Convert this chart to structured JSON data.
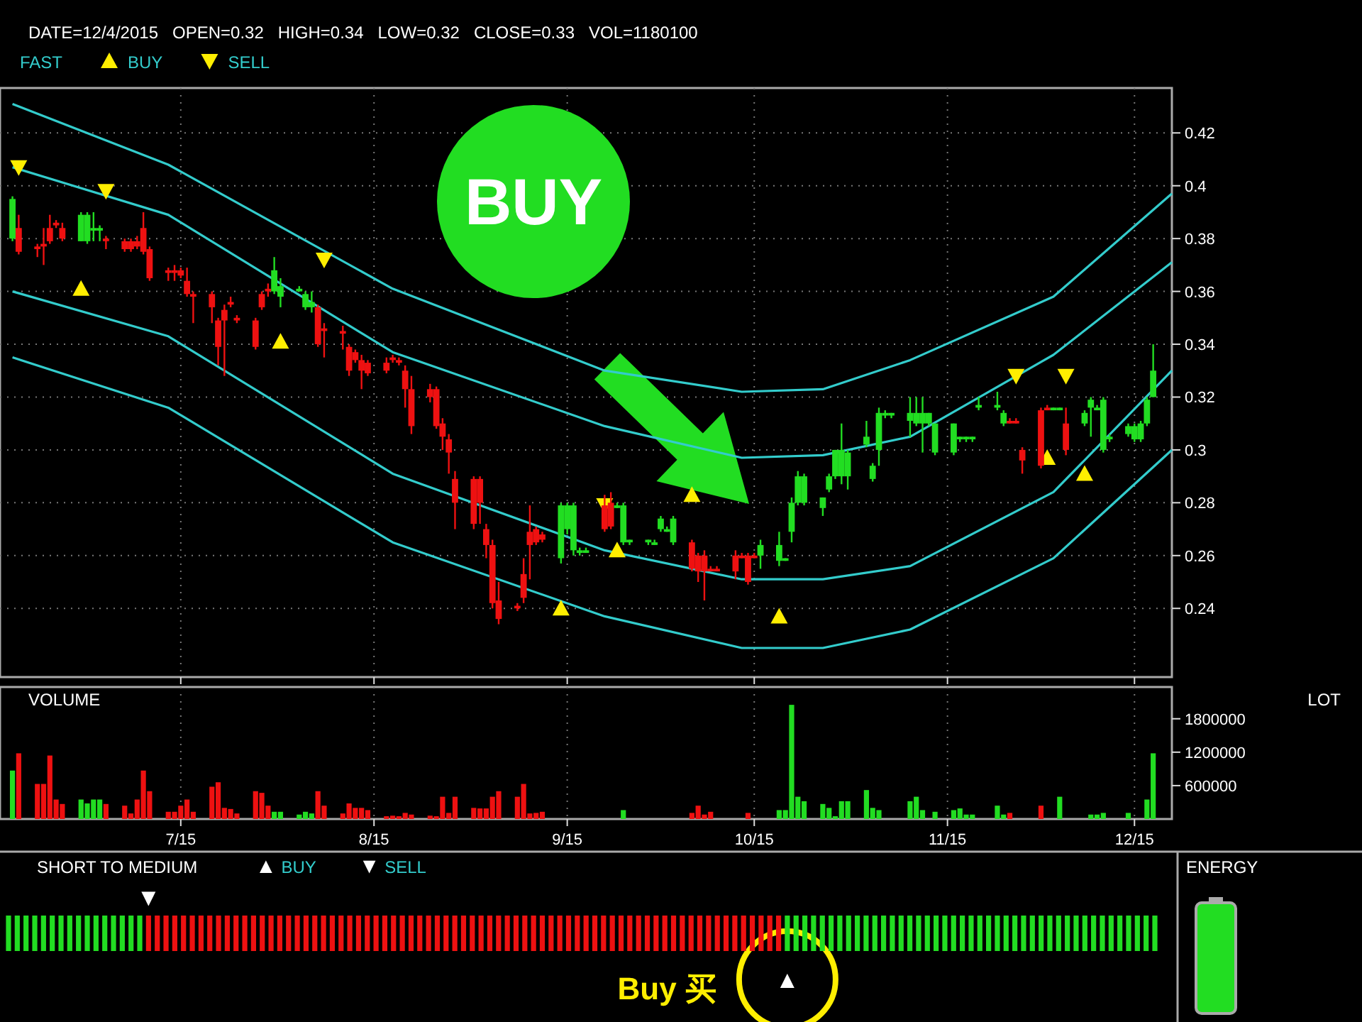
{
  "chart_data": [
    {
      "type": "candlestick",
      "title": "DATE=12/4/2015   OPEN=0.32   HIGH=0.34   LOW=0.32   CLOSE=0.33   VOL=1180100",
      "x": [
        "2015-06-04",
        "2015-06-05",
        "2015-06-08",
        "2015-06-09",
        "2015-06-10",
        "2015-06-11",
        "2015-06-12",
        "2015-06-15",
        "2015-06-16",
        "2015-06-17",
        "2015-06-18",
        "2015-06-19",
        "2015-06-22",
        "2015-06-23",
        "2015-06-24",
        "2015-06-25",
        "2015-06-26",
        "2015-06-29",
        "2015-06-30",
        "2015-07-01",
        "2015-07-02",
        "2015-07-03",
        "2015-07-06",
        "2015-07-07",
        "2015-07-08",
        "2015-07-09",
        "2015-07-10",
        "2015-07-13",
        "2015-07-14",
        "2015-07-15",
        "2015-07-16",
        "2015-07-17",
        "2015-07-20",
        "2015-07-21",
        "2015-07-22",
        "2015-07-23",
        "2015-07-24",
        "2015-07-27",
        "2015-07-28",
        "2015-07-29",
        "2015-07-30",
        "2015-07-31",
        "2015-08-03",
        "2015-08-04",
        "2015-08-05",
        "2015-08-06",
        "2015-08-07",
        "2015-08-10",
        "2015-08-11",
        "2015-08-12",
        "2015-08-13",
        "2015-08-14",
        "2015-08-17",
        "2015-08-18",
        "2015-08-19",
        "2015-08-20",
        "2015-08-21",
        "2015-08-24",
        "2015-08-25",
        "2015-08-26",
        "2015-08-27",
        "2015-08-28",
        "2015-08-31",
        "2015-09-01",
        "2015-09-02",
        "2015-09-03",
        "2015-09-04",
        "2015-09-07",
        "2015-09-08",
        "2015-09-09",
        "2015-09-10",
        "2015-09-11",
        "2015-09-14",
        "2015-09-15",
        "2015-09-16",
        "2015-09-17",
        "2015-09-18",
        "2015-09-21",
        "2015-09-22",
        "2015-09-23",
        "2015-09-24",
        "2015-09-25",
        "2015-09-28",
        "2015-09-29",
        "2015-09-30",
        "2015-10-01",
        "2015-10-02",
        "2015-10-05",
        "2015-10-06",
        "2015-10-07",
        "2015-10-08",
        "2015-10-09",
        "2015-10-12",
        "2015-10-13",
        "2015-10-14",
        "2015-10-15",
        "2015-10-16",
        "2015-10-19",
        "2015-10-20",
        "2015-10-21",
        "2015-10-22",
        "2015-10-23",
        "2015-10-26",
        "2015-10-27",
        "2015-10-28",
        "2015-10-29",
        "2015-10-30",
        "2015-11-02",
        "2015-11-03",
        "2015-11-04",
        "2015-11-05",
        "2015-11-06",
        "2015-11-09",
        "2015-11-10",
        "2015-11-11",
        "2015-11-12",
        "2015-11-13",
        "2015-11-16",
        "2015-11-17",
        "2015-11-18",
        "2015-11-19",
        "2015-11-20",
        "2015-11-23",
        "2015-11-24",
        "2015-11-25",
        "2015-11-26",
        "2015-11-27",
        "2015-11-30",
        "2015-12-01",
        "2015-12-02",
        "2015-12-03",
        "2015-12-04"
      ],
      "ohlc": [
        [
          0.38,
          0.396,
          0.379,
          0.395
        ],
        [
          0.384,
          0.389,
          0.374,
          0.375
        ],
        [
          0.377,
          0.378,
          0.373,
          0.376
        ],
        [
          0.378,
          0.384,
          0.37,
          0.377
        ],
        [
          0.384,
          0.389,
          0.378,
          0.379
        ],
        [
          0.386,
          0.387,
          0.384,
          0.385
        ],
        [
          0.384,
          0.386,
          0.379,
          0.38
        ],
        [
          0.379,
          0.39,
          0.379,
          0.389
        ],
        [
          0.379,
          0.39,
          0.378,
          0.389
        ],
        [
          0.383,
          0.39,
          0.379,
          0.384
        ],
        [
          0.383,
          0.385,
          0.379,
          0.384
        ],
        [
          0.38,
          0.381,
          0.376,
          0.379
        ],
        [
          0.379,
          0.38,
          0.375,
          0.376
        ],
        [
          0.379,
          0.38,
          0.375,
          0.376
        ],
        [
          0.379,
          0.381,
          0.376,
          0.377
        ],
        [
          0.384,
          0.39,
          0.374,
          0.375
        ],
        [
          0.376,
          0.377,
          0.364,
          0.365
        ],
        [
          0.368,
          0.369,
          0.364,
          0.367
        ],
        [
          0.368,
          0.37,
          0.364,
          0.367
        ],
        [
          0.368,
          0.369,
          0.365,
          0.366
        ],
        [
          0.364,
          0.369,
          0.358,
          0.359
        ],
        [
          0.359,
          0.36,
          0.348,
          0.358
        ],
        [
          0.359,
          0.36,
          0.348,
          0.354
        ],
        [
          0.349,
          0.35,
          0.332,
          0.339
        ],
        [
          0.353,
          0.355,
          0.328,
          0.349
        ],
        [
          0.356,
          0.358,
          0.354,
          0.355
        ],
        [
          0.35,
          0.351,
          0.348,
          0.349
        ],
        [
          0.349,
          0.35,
          0.338,
          0.339
        ],
        [
          0.359,
          0.36,
          0.353,
          0.354
        ],
        [
          0.361,
          0.363,
          0.358,
          0.36
        ],
        [
          0.36,
          0.373,
          0.359,
          0.368
        ],
        [
          0.358,
          0.365,
          0.354,
          0.362
        ],
        [
          0.36,
          0.362,
          0.36,
          0.361
        ],
        [
          0.354,
          0.36,
          0.353,
          0.359
        ],
        [
          0.354,
          0.36,
          0.352,
          0.356
        ],
        [
          0.354,
          0.355,
          0.339,
          0.34
        ],
        [
          0.346,
          0.348,
          0.335,
          0.345
        ],
        [
          0.345,
          0.347,
          0.338,
          0.344
        ],
        [
          0.339,
          0.34,
          0.328,
          0.33
        ],
        [
          0.337,
          0.338,
          0.333,
          0.334
        ],
        [
          0.334,
          0.336,
          0.323,
          0.33
        ],
        [
          0.333,
          0.334,
          0.328,
          0.329
        ],
        [
          0.333,
          0.335,
          0.329,
          0.33
        ],
        [
          0.335,
          0.336,
          0.333,
          0.334
        ],
        [
          0.334,
          0.335,
          0.332,
          0.333
        ],
        [
          0.33,
          0.332,
          0.316,
          0.323
        ],
        [
          0.323,
          0.328,
          0.306,
          0.309
        ],
        [
          0.323,
          0.325,
          0.318,
          0.32
        ],
        [
          0.323,
          0.324,
          0.308,
          0.309
        ],
        [
          0.31,
          0.312,
          0.3,
          0.305
        ],
        [
          0.304,
          0.306,
          0.291,
          0.299
        ],
        [
          0.289,
          0.292,
          0.27,
          0.28
        ],
        [
          0.289,
          0.29,
          0.27,
          0.272
        ],
        [
          0.289,
          0.29,
          0.272,
          0.28
        ],
        [
          0.27,
          0.272,
          0.259,
          0.264
        ],
        [
          0.264,
          0.266,
          0.24,
          0.242
        ],
        [
          0.243,
          0.25,
          0.234,
          0.236
        ],
        [
          0.241,
          0.242,
          0.239,
          0.24
        ],
        [
          0.253,
          0.259,
          0.242,
          0.244
        ],
        [
          0.269,
          0.279,
          0.251,
          0.264
        ],
        [
          0.27,
          0.271,
          0.264,
          0.265
        ],
        [
          0.268,
          0.269,
          0.265,
          0.266
        ],
        [
          0.259,
          0.28,
          0.257,
          0.279
        ],
        [
          0.27,
          0.28,
          0.268,
          0.279
        ],
        [
          0.262,
          0.28,
          0.26,
          0.279
        ],
        [
          0.261,
          0.263,
          0.26,
          0.262
        ],
        [
          0.261,
          0.263,
          0.261,
          0.262
        ],
        [
          0.279,
          0.283,
          0.269,
          0.27
        ],
        [
          0.28,
          0.284,
          0.27,
          0.271
        ],
        [
          0.278,
          0.28,
          0.278,
          0.279
        ],
        [
          0.265,
          0.28,
          0.264,
          0.279
        ],
        [
          0.265,
          0.266,
          0.264,
          0.266
        ],
        [
          0.265,
          0.266,
          0.264,
          0.266
        ],
        [
          0.264,
          0.266,
          0.264,
          0.265
        ],
        [
          0.27,
          0.275,
          0.269,
          0.274
        ],
        [
          0.269,
          0.271,
          0.269,
          0.27
        ],
        [
          0.265,
          0.275,
          0.264,
          0.274
        ],
        [
          0.265,
          0.266,
          0.254,
          0.255
        ],
        [
          0.26,
          0.261,
          0.25,
          0.254
        ],
        [
          0.26,
          0.262,
          0.243,
          0.254
        ],
        [
          0.255,
          0.256,
          0.254,
          0.254
        ],
        [
          0.255,
          0.256,
          0.254,
          0.254
        ],
        [
          0.26,
          0.262,
          0.251,
          0.254
        ],
        [
          0.26,
          0.261,
          0.259,
          0.259
        ],
        [
          0.26,
          0.261,
          0.249,
          0.25
        ],
        [
          0.26,
          0.261,
          0.259,
          0.259
        ],
        [
          0.26,
          0.266,
          0.255,
          0.264
        ],
        [
          0.258,
          0.269,
          0.256,
          0.264
        ],
        [
          0.258,
          0.259,
          0.258,
          0.259
        ],
        [
          0.269,
          0.282,
          0.265,
          0.28
        ],
        [
          0.28,
          0.292,
          0.279,
          0.29
        ],
        [
          0.28,
          0.291,
          0.279,
          0.29
        ],
        [
          0.278,
          0.282,
          0.275,
          0.282
        ],
        [
          0.285,
          0.291,
          0.284,
          0.29
        ],
        [
          0.29,
          0.3,
          0.289,
          0.3
        ],
        [
          0.29,
          0.31,
          0.287,
          0.3
        ],
        [
          0.29,
          0.3,
          0.285,
          0.299
        ],
        [
          0.302,
          0.311,
          0.301,
          0.305
        ],
        [
          0.289,
          0.295,
          0.288,
          0.294
        ],
        [
          0.3,
          0.316,
          0.294,
          0.314
        ],
        [
          0.313,
          0.315,
          0.312,
          0.314
        ],
        [
          0.313,
          0.314,
          0.312,
          0.314
        ],
        [
          0.311,
          0.32,
          0.305,
          0.314
        ],
        [
          0.31,
          0.32,
          0.309,
          0.314
        ],
        [
          0.31,
          0.32,
          0.299,
          0.314
        ],
        [
          0.31,
          0.314,
          0.309,
          0.314
        ],
        [
          0.299,
          0.31,
          0.298,
          0.31
        ],
        [
          0.299,
          0.31,
          0.298,
          0.31
        ],
        [
          0.304,
          0.305,
          0.303,
          0.305
        ],
        [
          0.304,
          0.305,
          0.303,
          0.305
        ],
        [
          0.304,
          0.305,
          0.303,
          0.305
        ],
        [
          0.316,
          0.32,
          0.315,
          0.317
        ],
        [
          0.316,
          0.322,
          0.315,
          0.317
        ],
        [
          0.31,
          0.315,
          0.309,
          0.314
        ],
        [
          0.311,
          0.312,
          0.31,
          0.31
        ],
        [
          0.311,
          0.312,
          0.31,
          0.31
        ],
        [
          0.3,
          0.301,
          0.291,
          0.296
        ],
        [
          0.315,
          0.316,
          0.293,
          0.294
        ],
        [
          0.316,
          0.317,
          0.315,
          0.315
        ],
        [
          0.315,
          0.316,
          0.315,
          0.316
        ],
        [
          0.315,
          0.316,
          0.315,
          0.316
        ],
        [
          0.31,
          0.316,
          0.298,
          0.3
        ],
        [
          0.31,
          0.315,
          0.309,
          0.314
        ],
        [
          0.316,
          0.32,
          0.305,
          0.319
        ],
        [
          0.315,
          0.317,
          0.315,
          0.316
        ],
        [
          0.3,
          0.32,
          0.299,
          0.319
        ],
        [
          0.304,
          0.306,
          0.303,
          0.305
        ],
        [
          0.306,
          0.31,
          0.305,
          0.309
        ],
        [
          0.304,
          0.31,
          0.303,
          0.309
        ],
        [
          0.304,
          0.311,
          0.303,
          0.31
        ],
        [
          0.31,
          0.32,
          0.309,
          0.319
        ],
        [
          0.32,
          0.34,
          0.32,
          0.33
        ]
      ],
      "colors": [
        "#22dd22",
        "#ee1111",
        "#ee1111",
        "#ee1111",
        "#ee1111",
        "#ee1111",
        "#ee1111",
        "#22dd22",
        "#22dd22",
        "#22dd22",
        "#22dd22",
        "#ee1111",
        "#ee1111",
        "#ee1111",
        "#ee1111",
        "#ee1111",
        "#ee1111",
        "#ee1111",
        "#ee1111",
        "#ee1111",
        "#ee1111",
        "#ee1111",
        "#ee1111",
        "#ee1111",
        "#ee1111",
        "#ee1111",
        "#ee1111",
        "#ee1111",
        "#ee1111",
        "#ee1111",
        "#22dd22",
        "#22dd22",
        "#22dd22",
        "#22dd22",
        "#22dd22",
        "#ee1111",
        "#ee1111",
        "#ee1111",
        "#ee1111",
        "#ee1111",
        "#ee1111",
        "#ee1111",
        "#ee1111",
        "#ee1111",
        "#ee1111",
        "#ee1111",
        "#ee1111",
        "#ee1111",
        "#ee1111",
        "#ee1111",
        "#ee1111",
        "#ee1111",
        "#ee1111",
        "#ee1111",
        "#ee1111",
        "#ee1111",
        "#ee1111",
        "#ee1111",
        "#ee1111",
        "#ee1111",
        "#ee1111",
        "#ee1111",
        "#22dd22",
        "#22dd22",
        "#22dd22",
        "#22dd22",
        "#22dd22",
        "#ee1111",
        "#ee1111",
        "#22dd22",
        "#22dd22",
        "#22dd22",
        "#22dd22",
        "#22dd22",
        "#22dd22",
        "#22dd22",
        "#22dd22",
        "#ee1111",
        "#ee1111",
        "#ee1111",
        "#ee1111",
        "#ee1111",
        "#ee1111",
        "#ee1111",
        "#ee1111",
        "#ee1111",
        "#22dd22",
        "#22dd22",
        "#22dd22",
        "#22dd22",
        "#22dd22",
        "#22dd22",
        "#22dd22",
        "#22dd22",
        "#22dd22",
        "#22dd22",
        "#22dd22",
        "#22dd22",
        "#22dd22",
        "#22dd22",
        "#22dd22",
        "#22dd22",
        "#22dd22",
        "#22dd22",
        "#22dd22",
        "#22dd22",
        "#22dd22",
        "#22dd22",
        "#22dd22",
        "#22dd22",
        "#22dd22",
        "#22dd22",
        "#22dd22",
        "#22dd22",
        "#ee1111",
        "#ee1111",
        "#ee1111",
        "#ee1111",
        "#ee1111",
        "#22dd22",
        "#22dd22",
        "#ee1111",
        "#22dd22",
        "#22dd22",
        "#22dd22",
        "#22dd22",
        "#22dd22",
        "#22dd22",
        "#22dd22",
        "#22dd22",
        "#22dd22",
        "#22dd22"
      ],
      "series": [
        {
          "name": "FAST",
          "type": "line",
          "color": "#33cccc",
          "x": [
            "2015-06-04",
            "2015-06-29",
            "2015-08-04",
            "2015-09-07",
            "2015-09-29",
            "2015-10-12",
            "2015-10-26",
            "2015-11-18",
            "2015-12-07"
          ],
          "values": [
            0.431,
            0.408,
            0.361,
            0.33,
            0.322,
            0.323,
            0.334,
            0.358,
            0.397
          ]
        },
        {
          "type": "line",
          "color": "#33cccc",
          "x": [
            "2015-06-04",
            "2015-06-29",
            "2015-08-04",
            "2015-09-07",
            "2015-09-29",
            "2015-10-12",
            "2015-10-26",
            "2015-11-18",
            "2015-12-07"
          ],
          "values": [
            0.407,
            0.389,
            0.337,
            0.309,
            0.297,
            0.298,
            0.305,
            0.336,
            0.371
          ]
        },
        {
          "type": "line",
          "color": "#33cccc",
          "x": [
            "2015-06-04",
            "2015-06-29",
            "2015-08-04",
            "2015-09-07",
            "2015-09-29",
            "2015-10-12",
            "2015-10-26",
            "2015-11-18",
            "2015-12-07"
          ],
          "values": [
            0.36,
            0.343,
            0.291,
            0.262,
            0.251,
            0.251,
            0.256,
            0.284,
            0.33
          ]
        },
        {
          "type": "line",
          "color": "#33cccc",
          "x": [
            "2015-06-04",
            "2015-06-29",
            "2015-08-04",
            "2015-09-07",
            "2015-09-29",
            "2015-10-12",
            "2015-10-26",
            "2015-11-18",
            "2015-12-07"
          ],
          "values": [
            0.335,
            0.316,
            0.265,
            0.237,
            0.225,
            0.225,
            0.232,
            0.259,
            0.3
          ]
        },
        {
          "name": "BUY",
          "type": "scatter",
          "marker": "triangle",
          "color": "#ffee00",
          "x": [
            "2015-06-15",
            "2015-07-17",
            "2015-08-31",
            "2015-09-09",
            "2015-09-21",
            "2015-10-05",
            "2015-11-17",
            "2015-11-23"
          ],
          "values": [
            0.361,
            0.341,
            0.24,
            0.262,
            0.283,
            0.237,
            0.297,
            0.291
          ]
        },
        {
          "name": "SELL",
          "type": "scatter",
          "marker": "triangle-down",
          "color": "#ffee00",
          "x": [
            "2015-06-05",
            "2015-06-19",
            "2015-07-24",
            "2015-09-07",
            "2015-11-12",
            "2015-11-20"
          ],
          "values": [
            0.407,
            0.398,
            0.372,
            0.279,
            0.328,
            0.328
          ]
        }
      ],
      "xlim": [
        "2015-06-02",
        "2015-12-07"
      ],
      "xticks": [
        {
          "value": "2015-07-01",
          "label": null
        },
        {
          "value": "2015-08-01",
          "label": null
        },
        {
          "value": "2015-09-01",
          "label": null
        },
        {
          "value": "2015-10-01",
          "label": null
        },
        {
          "value": "2015-11-01",
          "label": null
        },
        {
          "value": "2015-12-01",
          "label": null
        }
      ],
      "ylim": [
        0.214,
        0.437
      ],
      "yticks": [
        0.24,
        0.26,
        0.28,
        0.3,
        0.32,
        0.34,
        0.36,
        0.38,
        0.4,
        0.42
      ],
      "grid": true,
      "legend": "top left",
      "tick_labels": "y",
      "annotations": [
        "BUY"
      ]
    },
    {
      "type": "bar",
      "title": "VOLUME",
      "ylabel": "LOT",
      "x": [
        "2015-06-04",
        "2015-06-05",
        "2015-06-08",
        "2015-06-09",
        "2015-06-10",
        "2015-06-11",
        "2015-06-12",
        "2015-06-15",
        "2015-06-16",
        "2015-06-17",
        "2015-06-18",
        "2015-06-19",
        "2015-06-22",
        "2015-06-23",
        "2015-06-24",
        "2015-06-25",
        "2015-06-26",
        "2015-06-29",
        "2015-06-30",
        "2015-07-01",
        "2015-07-02",
        "2015-07-03",
        "2015-07-06",
        "2015-07-07",
        "2015-07-08",
        "2015-07-09",
        "2015-07-10",
        "2015-07-13",
        "2015-07-14",
        "2015-07-15",
        "2015-07-16",
        "2015-07-17",
        "2015-07-20",
        "2015-07-21",
        "2015-07-22",
        "2015-07-23",
        "2015-07-24",
        "2015-07-27",
        "2015-07-28",
        "2015-07-29",
        "2015-07-30",
        "2015-07-31",
        "2015-08-03",
        "2015-08-04",
        "2015-08-05",
        "2015-08-06",
        "2015-08-07",
        "2015-08-10",
        "2015-08-11",
        "2015-08-12",
        "2015-08-13",
        "2015-08-14",
        "2015-08-17",
        "2015-08-18",
        "2015-08-19",
        "2015-08-20",
        "2015-08-21",
        "2015-08-24",
        "2015-08-25",
        "2015-08-26",
        "2015-08-27",
        "2015-08-28",
        "2015-08-31",
        "2015-09-01",
        "2015-09-02",
        "2015-09-03",
        "2015-09-04",
        "2015-09-07",
        "2015-09-08",
        "2015-09-09",
        "2015-09-10",
        "2015-09-11",
        "2015-09-14",
        "2015-09-15",
        "2015-09-16",
        "2015-09-17",
        "2015-09-18",
        "2015-09-21",
        "2015-09-22",
        "2015-09-23",
        "2015-09-24",
        "2015-09-25",
        "2015-09-28",
        "2015-09-29",
        "2015-09-30",
        "2015-10-01",
        "2015-10-02",
        "2015-10-05",
        "2015-10-06",
        "2015-10-07",
        "2015-10-08",
        "2015-10-09",
        "2015-10-12",
        "2015-10-13",
        "2015-10-14",
        "2015-10-15",
        "2015-10-16",
        "2015-10-19",
        "2015-10-20",
        "2015-10-21",
        "2015-10-22",
        "2015-10-23",
        "2015-10-26",
        "2015-10-27",
        "2015-10-28",
        "2015-10-29",
        "2015-10-30",
        "2015-11-02",
        "2015-11-03",
        "2015-11-04",
        "2015-11-05",
        "2015-11-06",
        "2015-11-09",
        "2015-11-10",
        "2015-11-11",
        "2015-11-12",
        "2015-11-13",
        "2015-11-16",
        "2015-11-17",
        "2015-11-18",
        "2015-11-19",
        "2015-11-20",
        "2015-11-23",
        "2015-11-24",
        "2015-11-25",
        "2015-11-26",
        "2015-11-27",
        "2015-11-30",
        "2015-12-01",
        "2015-12-02",
        "2015-12-03",
        "2015-12-04"
      ],
      "values": [
        870000,
        1180000,
        630000,
        630000,
        1140000,
        350000,
        270000,
        350000,
        280000,
        350000,
        350000,
        270000,
        240000,
        100000,
        350000,
        870000,
        500000,
        130000,
        130000,
        240000,
        350000,
        130000,
        580000,
        660000,
        200000,
        180000,
        100000,
        500000,
        470000,
        240000,
        130000,
        130000,
        80000,
        130000,
        100000,
        500000,
        240000,
        100000,
        280000,
        200000,
        200000,
        160000,
        50000,
        60000,
        50000,
        110000,
        80000,
        60000,
        50000,
        400000,
        110000,
        400000,
        200000,
        190000,
        190000,
        400000,
        500000,
        400000,
        630000,
        100000,
        110000,
        130000,
        0,
        0,
        0,
        0,
        0,
        0,
        0,
        0,
        160000,
        0,
        0,
        0,
        0,
        0,
        0,
        110000,
        240000,
        80000,
        130000,
        0,
        0,
        0,
        110000,
        0,
        0,
        160000,
        160000,
        2050000,
        400000,
        320000,
        270000,
        200000,
        50000,
        320000,
        320000,
        520000,
        200000,
        160000,
        0,
        0,
        320000,
        400000,
        160000,
        0,
        130000,
        160000,
        190000,
        80000,
        80000,
        0,
        240000,
        80000,
        110000,
        0,
        0,
        240000,
        0,
        0,
        400000,
        0,
        0,
        80000,
        80000,
        110000,
        0,
        110000,
        0,
        0,
        350000,
        1180000
      ],
      "colors": [
        "#22dd22",
        "#ee1111",
        "#ee1111",
        "#ee1111",
        "#ee1111",
        "#ee1111",
        "#ee1111",
        "#22dd22",
        "#22dd22",
        "#22dd22",
        "#22dd22",
        "#ee1111",
        "#ee1111",
        "#ee1111",
        "#ee1111",
        "#ee1111",
        "#ee1111",
        "#ee1111",
        "#ee1111",
        "#ee1111",
        "#ee1111",
        "#ee1111",
        "#ee1111",
        "#ee1111",
        "#ee1111",
        "#ee1111",
        "#ee1111",
        "#ee1111",
        "#ee1111",
        "#ee1111",
        "#22dd22",
        "#22dd22",
        "#22dd22",
        "#22dd22",
        "#22dd22",
        "#ee1111",
        "#ee1111",
        "#ee1111",
        "#ee1111",
        "#ee1111",
        "#ee1111",
        "#ee1111",
        "#ee1111",
        "#ee1111",
        "#ee1111",
        "#ee1111",
        "#ee1111",
        "#ee1111",
        "#ee1111",
        "#ee1111",
        "#ee1111",
        "#ee1111",
        "#ee1111",
        "#ee1111",
        "#ee1111",
        "#ee1111",
        "#ee1111",
        "#ee1111",
        "#ee1111",
        "#ee1111",
        "#ee1111",
        "#ee1111",
        "#22dd22",
        "#22dd22",
        "#22dd22",
        "#22dd22",
        "#22dd22",
        "#ee1111",
        "#ee1111",
        "#22dd22",
        "#22dd22",
        "#22dd22",
        "#22dd22",
        "#22dd22",
        "#22dd22",
        "#22dd22",
        "#22dd22",
        "#ee1111",
        "#ee1111",
        "#ee1111",
        "#ee1111",
        "#ee1111",
        "#ee1111",
        "#ee1111",
        "#ee1111",
        "#ee1111",
        "#22dd22",
        "#22dd22",
        "#22dd22",
        "#22dd22",
        "#22dd22",
        "#22dd22",
        "#22dd22",
        "#22dd22",
        "#22dd22",
        "#22dd22",
        "#22dd22",
        "#22dd22",
        "#22dd22",
        "#22dd22",
        "#22dd22",
        "#22dd22",
        "#22dd22",
        "#22dd22",
        "#22dd22",
        "#22dd22",
        "#22dd22",
        "#22dd22",
        "#22dd22",
        "#22dd22",
        "#22dd22",
        "#22dd22",
        "#22dd22",
        "#22dd22",
        "#ee1111",
        "#ee1111",
        "#ee1111",
        "#ee1111",
        "#ee1111",
        "#22dd22",
        "#22dd22",
        "#ee1111",
        "#22dd22",
        "#22dd22",
        "#22dd22",
        "#22dd22",
        "#22dd22",
        "#22dd22",
        "#22dd22",
        "#22dd22",
        "#22dd22",
        "#22dd22"
      ],
      "xlim": [
        "2015-06-02",
        "2015-12-07"
      ],
      "xticks": [
        {
          "value": "2015-07-01",
          "label": "7/15"
        },
        {
          "value": "2015-08-01",
          "label": "8/15"
        },
        {
          "value": "2015-09-01",
          "label": "9/15"
        },
        {
          "value": "2015-10-01",
          "label": "10/15"
        },
        {
          "value": "2015-11-01",
          "label": "11/15"
        },
        {
          "value": "2015-12-01",
          "label": "12/15"
        }
      ],
      "ylim": [
        0,
        2370000
      ],
      "yticks": [
        600000,
        1200000,
        1800000
      ],
      "grid": "x"
    },
    {
      "type": "other",
      "title": "SHORT TO MEDIUM",
      "categories": [
        null,
        null,
        null,
        null,
        null,
        null,
        null,
        null,
        null,
        null,
        null,
        null,
        null,
        null,
        null,
        null,
        null,
        null,
        null,
        null,
        null,
        null,
        null,
        null,
        null,
        null,
        null,
        null,
        null,
        null,
        null,
        null,
        null,
        null,
        null,
        null,
        null,
        null,
        null,
        null,
        null,
        null,
        null,
        null,
        null,
        null,
        null,
        null,
        null,
        null,
        null,
        null,
        null,
        null,
        null,
        null,
        null,
        null,
        null,
        null,
        null,
        null,
        null,
        null,
        null,
        null,
        null,
        null,
        null,
        null,
        null,
        null,
        null,
        null,
        null,
        null,
        null,
        null,
        null,
        null,
        null,
        null,
        null,
        null,
        null,
        null,
        null,
        null,
        null,
        null,
        null,
        null,
        null,
        null,
        null,
        null,
        null,
        null,
        null,
        null,
        null,
        null,
        null,
        null,
        null,
        null,
        null,
        null,
        null,
        null,
        null,
        null,
        null,
        null,
        null,
        null,
        null,
        null,
        null,
        null,
        null,
        null,
        null,
        null,
        null,
        null,
        null,
        null,
        null,
        null,
        null,
        null
      ],
      "colors": [
        "#22dd22",
        "#22dd22",
        "#22dd22",
        "#22dd22",
        "#22dd22",
        "#22dd22",
        "#22dd22",
        "#22dd22",
        "#22dd22",
        "#22dd22",
        "#22dd22",
        "#22dd22",
        "#22dd22",
        "#22dd22",
        "#22dd22",
        "#22dd22",
        "#ee1111",
        "#ee1111",
        "#ee1111",
        "#ee1111",
        "#ee1111",
        "#ee1111",
        "#ee1111",
        "#ee1111",
        "#ee1111",
        "#ee1111",
        "#ee1111",
        "#ee1111",
        "#ee1111",
        "#ee1111",
        "#ee1111",
        "#ee1111",
        "#ee1111",
        "#ee1111",
        "#ee1111",
        "#ee1111",
        "#ee1111",
        "#ee1111",
        "#ee1111",
        "#ee1111",
        "#ee1111",
        "#ee1111",
        "#ee1111",
        "#ee1111",
        "#ee1111",
        "#ee1111",
        "#ee1111",
        "#ee1111",
        "#ee1111",
        "#ee1111",
        "#ee1111",
        "#ee1111",
        "#ee1111",
        "#ee1111",
        "#ee1111",
        "#ee1111",
        "#ee1111",
        "#ee1111",
        "#ee1111",
        "#ee1111",
        "#ee1111",
        "#ee1111",
        "#ee1111",
        "#ee1111",
        "#ee1111",
        "#ee1111",
        "#ee1111",
        "#ee1111",
        "#ee1111",
        "#ee1111",
        "#ee1111",
        "#ee1111",
        "#ee1111",
        "#ee1111",
        "#ee1111",
        "#ee1111",
        "#ee1111",
        "#ee1111",
        "#ee1111",
        "#ee1111",
        "#ee1111",
        "#ee1111",
        "#ee1111",
        "#ee1111",
        "#ee1111",
        "#ee1111",
        "#ee1111",
        "#ee1111",
        "#ee1111",
        "#22dd22",
        "#22dd22",
        "#22dd22",
        "#22dd22",
        "#22dd22",
        "#22dd22",
        "#22dd22",
        "#22dd22",
        "#22dd22",
        "#22dd22",
        "#22dd22",
        "#22dd22",
        "#22dd22",
        "#22dd22",
        "#22dd22",
        "#22dd22",
        "#22dd22",
        "#22dd22",
        "#22dd22",
        "#22dd22",
        "#22dd22",
        "#22dd22",
        "#22dd22",
        "#22dd22",
        "#22dd22",
        "#22dd22",
        "#22dd22",
        "#22dd22",
        "#22dd22",
        "#22dd22",
        "#22dd22",
        "#22dd22",
        "#22dd22",
        "#22dd22",
        "#22dd22",
        "#22dd22",
        "#22dd22",
        "#22dd22",
        "#22dd22",
        "#22dd22",
        "#22dd22",
        "#22dd22",
        "#22dd22"
      ],
      "annotations": [
        "▼",
        "▲",
        "▲ BUY",
        "▼ SELL",
        "Buy 买"
      ]
    },
    {
      "type": "other",
      "title": "ENERGY"
    }
  ]
}
